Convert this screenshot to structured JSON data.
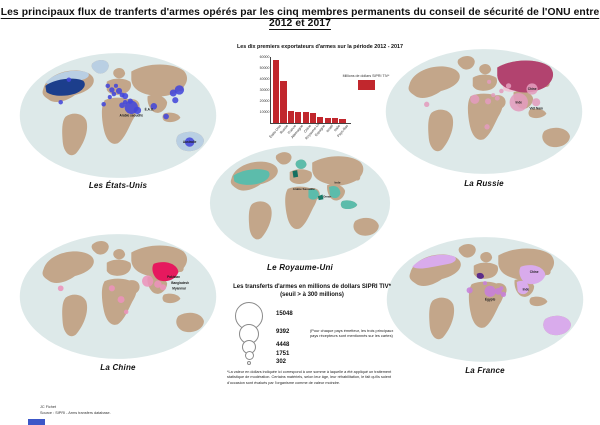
{
  "title": "Les principaux flux de tranferts d'armes opérés par les cinq membres permanents du conseil de sécurité de l'ONU entre 2012 et 2017",
  "chart_data": {
    "type": "bar",
    "title": "Les dix premiers exportateurs d'armes sur la période 2012 - 2017",
    "legend": "Millions de dollars SIPRI TIV*",
    "categories": [
      "États-Unis",
      "Russie",
      "France",
      "Allemagne",
      "Chine",
      "Royaume-Uni",
      "Espagne",
      "Israël",
      "Italie",
      "Pays-Bas"
    ],
    "values": [
      57100,
      37900,
      11300,
      10400,
      9900,
      9200,
      5600,
      4600,
      4300,
      3900
    ],
    "xlabel": "",
    "ylabel": "",
    "ylim": [
      0,
      60000
    ],
    "yticks": [
      10000,
      20000,
      30000,
      40000,
      50000,
      60000
    ],
    "bar_color": "#c1272d",
    "grid": false,
    "legend_position": "right"
  },
  "maps": [
    {
      "caption": "Les États-Unis",
      "colors": {
        "exporter": "#1c3e8c",
        "shade": "#b9cfe3",
        "fill": "#b9cfe3",
        "fillDark": "#1c3e8c",
        "bubble": "#4347d9"
      },
      "overlays": [
        {
          "region": "canada",
          "type": "shade"
        },
        {
          "region": "greenland",
          "type": "shade"
        },
        {
          "region": "australia",
          "type": "shade"
        },
        {
          "region": "usa",
          "type": "exporter"
        }
      ],
      "bubbles": [
        {
          "x": 52,
          "y": 30,
          "r": 2.2
        },
        {
          "x": 44,
          "y": 52,
          "r": 2.2
        },
        {
          "x": 90,
          "y": 36,
          "r": 2.2
        },
        {
          "x": 94,
          "y": 40,
          "r": 2.6
        },
        {
          "x": 98,
          "y": 36,
          "r": 2
        },
        {
          "x": 101,
          "y": 41,
          "r": 3
        },
        {
          "x": 96,
          "y": 44,
          "r": 2.2
        },
        {
          "x": 104,
          "y": 45,
          "r": 2.4
        },
        {
          "x": 92,
          "y": 47,
          "r": 2
        },
        {
          "x": 86,
          "y": 54,
          "r": 2.2
        },
        {
          "x": 107,
          "y": 46,
          "r": 3
        },
        {
          "x": 107,
          "y": 52,
          "r": 2.2
        },
        {
          "x": 112,
          "y": 51,
          "r": 2.6
        },
        {
          "x": 113,
          "y": 57,
          "r": 6.5,
          "label": "Arabie saoudite",
          "ly": 66
        },
        {
          "x": 119,
          "y": 60,
          "r": 3.6,
          "label": "É.A.U.",
          "ly": 60,
          "lx": 126
        },
        {
          "x": 104,
          "y": 55,
          "r": 2.8
        },
        {
          "x": 135,
          "y": 56,
          "r": 3.2
        },
        {
          "x": 154,
          "y": 43,
          "r": 3.4
        },
        {
          "x": 160,
          "y": 40,
          "r": 4.6
        },
        {
          "x": 156,
          "y": 50,
          "r": 3
        },
        {
          "x": 147,
          "y": 66,
          "r": 2.8
        },
        {
          "x": 170,
          "y": 91,
          "r": 4.6,
          "label": "Australie",
          "ly": 92,
          "lx": 170
        }
      ]
    },
    {
      "caption": "La Russie",
      "colors": {
        "exporter": "#b2436f",
        "shade": "#eec4d6",
        "fill": "#eec4d6",
        "fillDark": "#b2436f",
        "bubble": "#e39cbd"
      },
      "overlays": [
        {
          "region": "kazakhstan",
          "type": "shade"
        },
        {
          "region": "russia",
          "type": "exporter"
        }
      ],
      "bubbles": [
        {
          "x": 134,
          "y": 56,
          "r": 9,
          "label": "Inde",
          "ly": 57
        },
        {
          "x": 147,
          "y": 43,
          "r": 5.5,
          "label": "Chine",
          "ly": 44
        },
        {
          "x": 151,
          "y": 56,
          "r": 4,
          "label": "Viêt Nam",
          "ly": 63
        },
        {
          "x": 91,
          "y": 53,
          "r": 4.5
        },
        {
          "x": 104,
          "y": 55,
          "r": 3
        },
        {
          "x": 109,
          "y": 49,
          "r": 2
        },
        {
          "x": 113,
          "y": 52,
          "r": 2.4
        },
        {
          "x": 117,
          "y": 45,
          "r": 2.2
        },
        {
          "x": 105,
          "y": 36,
          "r": 2
        },
        {
          "x": 124,
          "y": 40,
          "r": 2.6
        },
        {
          "x": 44,
          "y": 58,
          "r": 2.6
        },
        {
          "x": 103,
          "y": 80,
          "r": 2.6
        }
      ]
    },
    {
      "caption": "Le Royaume-Uni",
      "colors": {
        "exporter": "#156f60",
        "shade": "#9ed8cc",
        "fill": "#5cbcab",
        "fillDark": "#177a68",
        "bubble": "#5cbcab"
      },
      "overlays": [
        {
          "region": "usa",
          "type": "fill"
        },
        {
          "region": "scandinavia",
          "type": "fill"
        },
        {
          "region": "saudi",
          "type": "fill",
          "label": "Arabie Saoudite",
          "lx": 104,
          "ly": 51
        },
        {
          "region": "oman",
          "type": "fillDark",
          "label": "Oman",
          "lx": 129,
          "ly": 59
        },
        {
          "region": "india",
          "type": "fill",
          "label": "Inde",
          "lx": 140,
          "ly": 44
        },
        {
          "region": "indonesia",
          "type": "fill"
        },
        {
          "region": "uk",
          "type": "exporter"
        }
      ],
      "bubbles": []
    },
    {
      "caption": "La Chine",
      "colors": {
        "exporter": "#e6195e",
        "shade": "#f3b8cf",
        "fill": "#f3b8cf",
        "fillDark": "#e6195e",
        "bubble": "#ec93bb"
      },
      "overlays": [
        {
          "region": "china",
          "type": "exporter"
        }
      ],
      "bubbles": [
        {
          "x": 129,
          "y": 50,
          "r": 5.5,
          "label": "Pakistan",
          "lx": 148,
          "ly": 47
        },
        {
          "x": 139,
          "y": 53,
          "r": 3.6,
          "label": "Bangladesh",
          "lx": 152,
          "ly": 53
        },
        {
          "x": 144,
          "y": 56,
          "r": 3,
          "label": "Myanmar",
          "lx": 153,
          "ly": 58
        },
        {
          "x": 94,
          "y": 57,
          "r": 3
        },
        {
          "x": 103,
          "y": 68,
          "r": 3.4
        },
        {
          "x": 108,
          "y": 80,
          "r": 2.2
        },
        {
          "x": 44,
          "y": 57,
          "r": 2.8
        }
      ]
    },
    {
      "caption": "La France",
      "colors": {
        "exporter": "#5b2b8a",
        "shade": "#d9abec",
        "fill": "#d9abec",
        "fillDark": "#5b2b8a",
        "bubble": "#c77fd9"
      },
      "overlays": [
        {
          "region": "canada",
          "type": "fill"
        },
        {
          "region": "china",
          "type": "fill",
          "label": "Chine",
          "lx": 148,
          "ly": 39
        },
        {
          "region": "india",
          "type": "fill",
          "label": "Inde",
          "lx": 140,
          "ly": 56
        },
        {
          "region": "australia",
          "type": "fill"
        },
        {
          "region": "france",
          "type": "exporter"
        }
      ],
      "bubbles": [
        {
          "x": 105,
          "y": 57,
          "r": 5.5,
          "label": "Égypte",
          "ly": 66
        },
        {
          "x": 85,
          "y": 56,
          "r": 3
        },
        {
          "x": 113,
          "y": 57,
          "r": 3.4
        },
        {
          "x": 118,
          "y": 60,
          "r": 2.6
        },
        {
          "x": 116,
          "y": 54,
          "r": 2
        },
        {
          "x": 100,
          "y": 49,
          "r": 2
        }
      ]
    }
  ],
  "bubble_legend": {
    "title_line1": "Les transferts d'armes en millions de dollars SIPRI TIV*",
    "title_line2": "(seuil > à 300 millions)",
    "values": [
      "15048",
      "9392",
      "4448",
      "1751",
      "302"
    ],
    "note": "(Pour chaque pays émetteur, les trois principaux pays récepteurs sont mentionnés sur les cartes)",
    "footnote": "*La valeur en dollars indiquée ici correspond à une somme à laquelle a été appliqué un traitement statistique de modération. Certains matériels, selon leur âge, leur réhabilitation, le fait qu'ils soient d'occasion sont évalués par l'organisme comme de valeur moindre."
  },
  "credits": {
    "author": "JC Fichet",
    "source": "Source : SIPRI - Arms transfers database."
  },
  "map_style": {
    "ocean": "#dde9e9",
    "land": "#c3a68a"
  }
}
